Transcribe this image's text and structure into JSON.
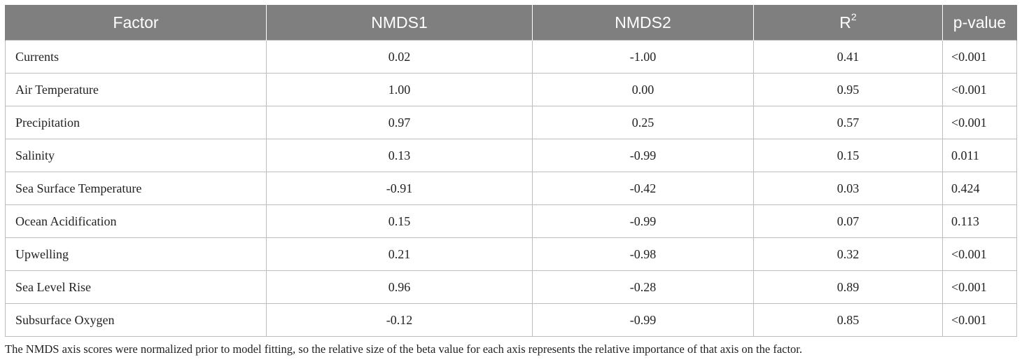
{
  "table": {
    "headers": {
      "factor": "Factor",
      "nmds1": "NMDS1",
      "nmds2": "NMDS2",
      "r2_base": "R",
      "r2_sup": "2",
      "pvalue": "p-value"
    },
    "rows": [
      {
        "factor": "Currents",
        "nmds1": "0.02",
        "nmds2": "-1.00",
        "r2": "0.41",
        "p": "<0.001"
      },
      {
        "factor": "Air Temperature",
        "nmds1": "1.00",
        "nmds2": "0.00",
        "r2": "0.95",
        "p": "<0.001"
      },
      {
        "factor": "Precipitation",
        "nmds1": "0.97",
        "nmds2": "0.25",
        "r2": "0.57",
        "p": "<0.001"
      },
      {
        "factor": "Salinity",
        "nmds1": "0.13",
        "nmds2": "-0.99",
        "r2": "0.15",
        "p": "0.011"
      },
      {
        "factor": "Sea Surface Temperature",
        "nmds1": "-0.91",
        "nmds2": "-0.42",
        "r2": "0.03",
        "p": "0.424"
      },
      {
        "factor": "Ocean Acidification",
        "nmds1": "0.15",
        "nmds2": "-0.99",
        "r2": "0.07",
        "p": "0.113"
      },
      {
        "factor": "Upwelling",
        "nmds1": "0.21",
        "nmds2": "-0.98",
        "r2": "0.32",
        "p": "<0.001"
      },
      {
        "factor": "Sea Level Rise",
        "nmds1": "0.96",
        "nmds2": "-0.28",
        "r2": "0.89",
        "p": "<0.001"
      },
      {
        "factor": "Subsurface Oxygen",
        "nmds1": "-0.12",
        "nmds2": "-0.99",
        "r2": "0.85",
        "p": "<0.001"
      }
    ]
  },
  "footnote": "The NMDS axis scores were normalized prior to model fitting, so the relative size of the beta value for each axis represents the relative importance of that axis on the factor.",
  "colors": {
    "header_bg": "#7f7f7f",
    "header_text": "#ffffff",
    "grid_line": "#bdbdbd",
    "body_text": "#222222"
  }
}
